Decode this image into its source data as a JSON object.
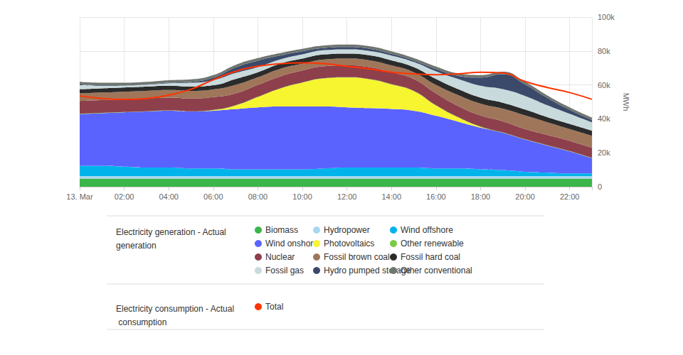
{
  "chart_data": {
    "type": "area",
    "stacked": true,
    "grid": true,
    "ylabel": "MWh",
    "categories": [
      "13. Mar",
      null,
      "02:00",
      null,
      "04:00",
      null,
      "06:00",
      null,
      "08:00",
      null,
      "10:00",
      null,
      "12:00",
      null,
      "14:00",
      null,
      "16:00",
      null,
      "18:00",
      null,
      "20:00",
      null,
      "22:00",
      null
    ],
    "ylim": [
      0,
      100000
    ],
    "yticks": [
      0,
      {
        "value": 20000,
        "label": "20k"
      },
      {
        "value": 40000,
        "label": "40k"
      },
      {
        "value": 60000,
        "label": "60k"
      },
      {
        "value": 80000,
        "label": "80k"
      },
      {
        "value": 100000,
        "label": "100k"
      }
    ],
    "legend_groups": [
      {
        "title": "Electricity generation - Actual generation",
        "series": [
          "Biomass",
          "Hydropower",
          "Wind offshore",
          "Wind onshore",
          "Photovoltaics",
          "Other renewable",
          "Nuclear",
          "Fossil brown coal",
          "Fossil hard coal",
          "Fossil gas",
          "Hydro pumped storage",
          "Other conventional"
        ]
      },
      {
        "title": "Electricity consumption - Actual consumption",
        "series": [
          "Total"
        ]
      }
    ],
    "series": [
      {
        "name": "Biomass",
        "type": "area",
        "color": "#3cb54a",
        "values": [
          4800,
          4800,
          4800,
          4800,
          4800,
          4800,
          4800,
          4800,
          4800,
          4800,
          4800,
          4800,
          4800,
          4800,
          4800,
          4800,
          4800,
          4800,
          4800,
          4800,
          4800,
          4800,
          4800,
          4800
        ]
      },
      {
        "name": "Hydropower",
        "type": "area",
        "color": "#a8d8ef",
        "values": [
          1500,
          1500,
          1500,
          1500,
          1500,
          1500,
          1500,
          1500,
          1500,
          1500,
          1500,
          1500,
          1500,
          1500,
          1500,
          1500,
          1500,
          1500,
          1500,
          1500,
          1500,
          1500,
          1500,
          1500
        ]
      },
      {
        "name": "Wind offshore",
        "type": "area",
        "color": "#00b4eb",
        "values": [
          6000,
          6000,
          5500,
          5000,
          5000,
          4500,
          4500,
          4000,
          4000,
          4000,
          4000,
          4500,
          5000,
          5000,
          5000,
          5000,
          4500,
          4500,
          4000,
          3500,
          2500,
          2000,
          1500,
          1500
        ]
      },
      {
        "name": "Wind onshore",
        "type": "area",
        "color": "#5b63ff",
        "values": [
          30500,
          31000,
          32000,
          33000,
          33500,
          33500,
          34000,
          35500,
          36500,
          37000,
          37000,
          36500,
          35500,
          35000,
          34500,
          33500,
          31000,
          27500,
          24500,
          22000,
          19000,
          16000,
          13000,
          9000
        ]
      },
      {
        "name": "Photovoltaics",
        "type": "area",
        "color": "#f7f52f",
        "values": [
          0,
          0,
          0,
          0,
          0,
          0,
          300,
          2000,
          6000,
          10500,
          14000,
          16500,
          17500,
          17000,
          14500,
          11500,
          6000,
          2500,
          500,
          0,
          0,
          0,
          0,
          0
        ]
      },
      {
        "name": "Other renewable",
        "type": "area",
        "color": "#7ac943",
        "values": [
          200,
          200,
          200,
          200,
          200,
          200,
          200,
          200,
          200,
          200,
          200,
          200,
          200,
          200,
          200,
          200,
          200,
          200,
          200,
          200,
          200,
          200,
          200,
          200
        ]
      },
      {
        "name": "Nuclear",
        "type": "area",
        "color": "#8e3f4c",
        "values": [
          7500,
          7500,
          7500,
          7500,
          7500,
          7500,
          7500,
          7000,
          7000,
          7000,
          7000,
          7000,
          7000,
          7000,
          7000,
          7000,
          7000,
          6500,
          6500,
          6500,
          6000,
          6000,
          6000,
          6000
        ]
      },
      {
        "name": "Fossil brown coal",
        "type": "area",
        "color": "#a0765a",
        "values": [
          4500,
          4500,
          4500,
          4500,
          4500,
          4500,
          4500,
          5000,
          4500,
          4500,
          4000,
          4000,
          4000,
          4000,
          4000,
          4000,
          5000,
          6500,
          7000,
          7500,
          8000,
          7500,
          7000,
          7000
        ]
      },
      {
        "name": "Fossil hard coal",
        "type": "area",
        "color": "#2b2b2b",
        "values": [
          2500,
          2500,
          2500,
          2500,
          2500,
          2500,
          2500,
          3500,
          3000,
          3000,
          3000,
          3000,
          3000,
          3000,
          3000,
          3000,
          3500,
          3500,
          3500,
          3500,
          3500,
          3000,
          3000,
          3000
        ]
      },
      {
        "name": "Fossil gas",
        "type": "area",
        "color": "#c8dadc",
        "values": [
          2300,
          1500,
          1100,
          1100,
          1500,
          2300,
          3000,
          3500,
          3000,
          2500,
          2500,
          2500,
          2500,
          2500,
          2800,
          3000,
          4500,
          6000,
          7000,
          8000,
          8000,
          7000,
          6000,
          5000
        ]
      },
      {
        "name": "Hydro pumped storage",
        "type": "area",
        "color": "#3b4a6b",
        "values": [
          500,
          300,
          200,
          200,
          300,
          500,
          1500,
          3300,
          3800,
          2300,
          1800,
          1300,
          1300,
          1300,
          1000,
          800,
          1300,
          1800,
          4800,
          8800,
          6800,
          4300,
          2300,
          1300
        ]
      },
      {
        "name": "Other conventional",
        "type": "area",
        "color": "#6f7670",
        "values": [
          1500,
          1500,
          1500,
          1500,
          1500,
          1500,
          1500,
          1500,
          1500,
          1500,
          1500,
          1500,
          1500,
          1500,
          1500,
          1500,
          1500,
          1500,
          1500,
          1500,
          1500,
          1500,
          1500,
          1500
        ]
      },
      {
        "name": "Total",
        "type": "line",
        "color": "#ff3300",
        "values": [
          53500,
          52000,
          51500,
          52000,
          54000,
          57500,
          63000,
          68000,
          71000,
          72500,
          73000,
          72500,
          71000,
          69500,
          67500,
          66500,
          66000,
          66500,
          67500,
          67000,
          62000,
          58500,
          55500,
          51500
        ]
      }
    ]
  }
}
